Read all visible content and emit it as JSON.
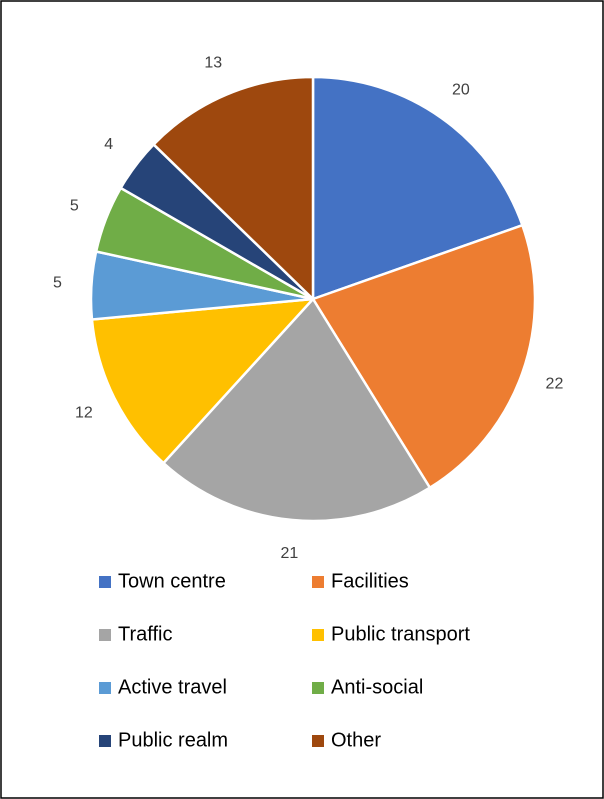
{
  "chart_data": {
    "type": "pie",
    "categories": [
      "Town centre",
      "Facilities",
      "Traffic",
      "Public transport",
      "Active travel",
      "Anti-social",
      "Public realm",
      "Other"
    ],
    "values": [
      20,
      22,
      21,
      12,
      5,
      5,
      4,
      13
    ],
    "colors": [
      "#4472c4",
      "#ed7d31",
      "#a5a5a5",
      "#ffc000",
      "#5b9bd5",
      "#70ad47",
      "#264478",
      "#9e480e"
    ],
    "legend": "bottom"
  }
}
